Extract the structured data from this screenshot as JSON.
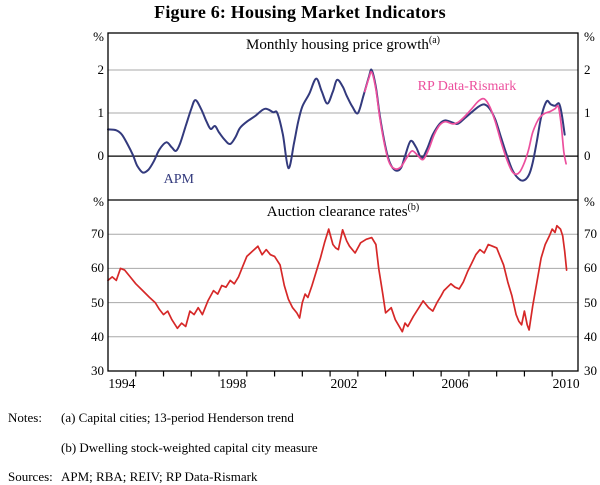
{
  "figure": {
    "title": "Figure 6: Housing Market Indicators"
  },
  "chart_data": [
    {
      "type": "line",
      "panel": "top",
      "title": "Monthly housing price growth",
      "marker": "(a)",
      "unit": "%",
      "ylim": [
        -1.02,
        2.86
      ],
      "yticks": [
        0,
        1,
        2
      ],
      "grid_yticks": [
        1,
        2
      ],
      "zero_line": true,
      "legend_position": "in-plot labels",
      "series": [
        {
          "name": "APM",
          "color": "#333a7d",
          "smooth": true,
          "points": [
            [
              1994.0,
              0.62
            ],
            [
              1994.3,
              0.6
            ],
            [
              1994.5,
              0.5
            ],
            [
              1994.7,
              0.28
            ],
            [
              1994.9,
              0.02
            ],
            [
              1995.05,
              -0.22
            ],
            [
              1995.25,
              -0.38
            ],
            [
              1995.45,
              -0.32
            ],
            [
              1995.65,
              -0.12
            ],
            [
              1995.85,
              0.15
            ],
            [
              1996.1,
              0.32
            ],
            [
              1996.3,
              0.2
            ],
            [
              1996.45,
              0.12
            ],
            [
              1996.6,
              0.3
            ],
            [
              1996.8,
              0.7
            ],
            [
              1997.0,
              1.1
            ],
            [
              1997.15,
              1.3
            ],
            [
              1997.35,
              1.1
            ],
            [
              1997.55,
              0.8
            ],
            [
              1997.7,
              0.63
            ],
            [
              1997.85,
              0.7
            ],
            [
              1998.0,
              0.55
            ],
            [
              1998.2,
              0.38
            ],
            [
              1998.4,
              0.28
            ],
            [
              1998.6,
              0.45
            ],
            [
              1998.75,
              0.65
            ],
            [
              1999.0,
              0.8
            ],
            [
              1999.3,
              0.93
            ],
            [
              1999.65,
              1.1
            ],
            [
              1999.95,
              1.02
            ],
            [
              2000.1,
              1.0
            ],
            [
              2000.3,
              0.5
            ],
            [
              2000.5,
              -0.28
            ],
            [
              2000.7,
              0.3
            ],
            [
              2000.85,
              0.8
            ],
            [
              2001.0,
              1.15
            ],
            [
              2001.25,
              1.45
            ],
            [
              2001.5,
              1.8
            ],
            [
              2001.7,
              1.5
            ],
            [
              2001.9,
              1.22
            ],
            [
              2002.1,
              1.5
            ],
            [
              2002.25,
              1.77
            ],
            [
              2002.45,
              1.62
            ],
            [
              2002.6,
              1.4
            ],
            [
              2002.8,
              1.15
            ],
            [
              2003.0,
              1.0
            ],
            [
              2003.2,
              1.4
            ],
            [
              2003.4,
              1.85
            ],
            [
              2003.5,
              2.0
            ],
            [
              2003.65,
              1.6
            ],
            [
              2003.8,
              0.9
            ],
            [
              2004.0,
              0.2
            ],
            [
              2004.15,
              -0.15
            ],
            [
              2004.35,
              -0.33
            ],
            [
              2004.55,
              -0.28
            ],
            [
              2004.7,
              0.0
            ],
            [
              2004.9,
              0.35
            ],
            [
              2005.1,
              0.2
            ],
            [
              2005.3,
              -0.05
            ],
            [
              2005.5,
              0.18
            ],
            [
              2005.7,
              0.5
            ],
            [
              2005.95,
              0.75
            ],
            [
              2006.15,
              0.83
            ],
            [
              2006.4,
              0.78
            ],
            [
              2006.6,
              0.75
            ],
            [
              2006.85,
              0.88
            ],
            [
              2007.1,
              1.02
            ],
            [
              2007.35,
              1.15
            ],
            [
              2007.55,
              1.2
            ],
            [
              2007.75,
              1.1
            ],
            [
              2007.95,
              0.85
            ],
            [
              2008.15,
              0.45
            ],
            [
              2008.35,
              0.05
            ],
            [
              2008.55,
              -0.3
            ],
            [
              2008.75,
              -0.5
            ],
            [
              2008.95,
              -0.57
            ],
            [
              2009.15,
              -0.45
            ],
            [
              2009.3,
              -0.15
            ],
            [
              2009.45,
              0.35
            ],
            [
              2009.6,
              0.9
            ],
            [
              2009.8,
              1.27
            ],
            [
              2009.95,
              1.2
            ],
            [
              2010.1,
              1.17
            ],
            [
              2010.25,
              1.22
            ],
            [
              2010.35,
              0.95
            ],
            [
              2010.45,
              0.5
            ]
          ]
        },
        {
          "name": "RP Data-Rismark",
          "color": "#ec4f9d",
          "smooth": true,
          "points": [
            [
              2003.25,
              1.5
            ],
            [
              2003.4,
              1.82
            ],
            [
              2003.5,
              1.95
            ],
            [
              2003.65,
              1.55
            ],
            [
              2003.8,
              0.85
            ],
            [
              2004.0,
              0.15
            ],
            [
              2004.15,
              -0.18
            ],
            [
              2004.35,
              -0.3
            ],
            [
              2004.55,
              -0.25
            ],
            [
              2004.75,
              -0.05
            ],
            [
              2004.95,
              0.12
            ],
            [
              2005.15,
              0.02
            ],
            [
              2005.35,
              -0.08
            ],
            [
              2005.55,
              0.15
            ],
            [
              2005.75,
              0.5
            ],
            [
              2005.95,
              0.72
            ],
            [
              2006.15,
              0.8
            ],
            [
              2006.4,
              0.75
            ],
            [
              2006.6,
              0.78
            ],
            [
              2006.85,
              0.92
            ],
            [
              2007.1,
              1.1
            ],
            [
              2007.35,
              1.28
            ],
            [
              2007.55,
              1.33
            ],
            [
              2007.75,
              1.15
            ],
            [
              2007.95,
              0.8
            ],
            [
              2008.15,
              0.35
            ],
            [
              2008.35,
              -0.05
            ],
            [
              2008.55,
              -0.35
            ],
            [
              2008.7,
              -0.42
            ],
            [
              2008.85,
              -0.35
            ],
            [
              2009.0,
              -0.15
            ],
            [
              2009.15,
              0.15
            ],
            [
              2009.3,
              0.55
            ],
            [
              2009.5,
              0.85
            ],
            [
              2009.7,
              0.98
            ],
            [
              2009.9,
              1.03
            ],
            [
              2010.1,
              1.1
            ],
            [
              2010.22,
              1.15
            ],
            [
              2010.32,
              0.75
            ],
            [
              2010.42,
              0.1
            ],
            [
              2010.5,
              -0.18
            ]
          ]
        }
      ],
      "labels": [
        {
          "text": "APM",
          "x": 1996.55,
          "y": -0.55,
          "color": "#333a7d"
        },
        {
          "text": "RP Data-Rismark",
          "x": 2006.93,
          "y": 1.6,
          "color": "#ec4f9d"
        }
      ]
    },
    {
      "type": "line",
      "panel": "bottom",
      "title": "Auction clearance rates",
      "marker": "(b)",
      "unit": "%",
      "ylim": [
        30,
        80
      ],
      "yticks": [
        30,
        40,
        50,
        60,
        70
      ],
      "grid_yticks": [
        40,
        50,
        60,
        70
      ],
      "zero_line": false,
      "series": [
        {
          "name": "Auction clearance rates",
          "color": "#d62828",
          "smooth": false,
          "points": [
            [
              1994.0,
              56.5
            ],
            [
              1994.15,
              57.5
            ],
            [
              1994.3,
              56.5
            ],
            [
              1994.45,
              60
            ],
            [
              1994.6,
              59.5
            ],
            [
              1994.8,
              57.5
            ],
            [
              1995.0,
              55.5
            ],
            [
              1995.25,
              53.5
            ],
            [
              1995.5,
              51.5
            ],
            [
              1995.7,
              50
            ],
            [
              1995.85,
              48
            ],
            [
              1996.0,
              46.5
            ],
            [
              1996.15,
              47.5
            ],
            [
              1996.3,
              45
            ],
            [
              1996.5,
              42.5
            ],
            [
              1996.65,
              44
            ],
            [
              1996.8,
              43
            ],
            [
              1996.95,
              47.5
            ],
            [
              1997.1,
              46.5
            ],
            [
              1997.25,
              48.5
            ],
            [
              1997.4,
              46.5
            ],
            [
              1997.6,
              50.5
            ],
            [
              1997.8,
              53.5
            ],
            [
              1997.95,
              52.5
            ],
            [
              1998.1,
              55
            ],
            [
              1998.25,
              54.5
            ],
            [
              1998.4,
              56.5
            ],
            [
              1998.55,
              55.5
            ],
            [
              1998.7,
              57.5
            ],
            [
              1998.85,
              60.5
            ],
            [
              1999.0,
              63.5
            ],
            [
              1999.2,
              65
            ],
            [
              1999.4,
              66.5
            ],
            [
              1999.55,
              64
            ],
            [
              1999.7,
              65.5
            ],
            [
              1999.85,
              64
            ],
            [
              2000.0,
              63.5
            ],
            [
              2000.2,
              61
            ],
            [
              2000.35,
              55
            ],
            [
              2000.5,
              51
            ],
            [
              2000.65,
              48.5
            ],
            [
              2000.8,
              47
            ],
            [
              2000.9,
              45.5
            ],
            [
              2001.0,
              50
            ],
            [
              2001.1,
              52.5
            ],
            [
              2001.2,
              51.5
            ],
            [
              2001.35,
              55
            ],
            [
              2001.5,
              59
            ],
            [
              2001.65,
              63
            ],
            [
              2001.8,
              67.5
            ],
            [
              2001.95,
              71.5
            ],
            [
              2002.1,
              67
            ],
            [
              2002.2,
              66
            ],
            [
              2002.3,
              65.5
            ],
            [
              2002.45,
              71.3
            ],
            [
              2002.6,
              68
            ],
            [
              2002.7,
              66.5
            ],
            [
              2002.9,
              64.5
            ],
            [
              2003.1,
              67.5
            ],
            [
              2003.3,
              68.5
            ],
            [
              2003.5,
              69
            ],
            [
              2003.65,
              67
            ],
            [
              2003.75,
              60
            ],
            [
              2003.9,
              52.5
            ],
            [
              2004.0,
              47
            ],
            [
              2004.2,
              48.5
            ],
            [
              2004.35,
              45
            ],
            [
              2004.6,
              41.5
            ],
            [
              2004.7,
              44
            ],
            [
              2004.8,
              43
            ],
            [
              2005.0,
              46
            ],
            [
              2005.2,
              48.5
            ],
            [
              2005.35,
              50.5
            ],
            [
              2005.55,
              48.5
            ],
            [
              2005.7,
              47.5
            ],
            [
              2005.85,
              50
            ],
            [
              2006.0,
              52
            ],
            [
              2006.1,
              53.5
            ],
            [
              2006.35,
              55.5
            ],
            [
              2006.5,
              54.5
            ],
            [
              2006.65,
              54
            ],
            [
              2006.8,
              56
            ],
            [
              2006.95,
              59
            ],
            [
              2007.1,
              61.5
            ],
            [
              2007.25,
              64
            ],
            [
              2007.4,
              65.5
            ],
            [
              2007.55,
              64.5
            ],
            [
              2007.7,
              67
            ],
            [
              2007.85,
              66.5
            ],
            [
              2008.0,
              66
            ],
            [
              2008.1,
              64
            ],
            [
              2008.25,
              61
            ],
            [
              2008.4,
              56
            ],
            [
              2008.55,
              52
            ],
            [
              2008.7,
              46.5
            ],
            [
              2008.8,
              44.5
            ],
            [
              2008.9,
              43.5
            ],
            [
              2009.0,
              47.5
            ],
            [
              2009.1,
              43.5
            ],
            [
              2009.17,
              42
            ],
            [
              2009.3,
              49
            ],
            [
              2009.45,
              56
            ],
            [
              2009.6,
              63
            ],
            [
              2009.75,
              67
            ],
            [
              2009.9,
              69.5
            ],
            [
              2010.0,
              71.5
            ],
            [
              2010.1,
              70.5
            ],
            [
              2010.17,
              72.5
            ],
            [
              2010.3,
              71.5
            ],
            [
              2010.38,
              69.5
            ],
            [
              2010.45,
              65
            ],
            [
              2010.52,
              59.5
            ]
          ]
        }
      ],
      "labels": []
    }
  ],
  "x_axis": {
    "xlim": [
      1994,
      2010.93
    ],
    "minor_ticks": [
      1995,
      1996,
      1997,
      1998,
      1999,
      2000,
      2001,
      2002,
      2003,
      2004,
      2005,
      2006,
      2007,
      2008,
      2009,
      2010
    ],
    "labels": [
      {
        "text": "1994",
        "x": 1994.5
      },
      {
        "text": "1998",
        "x": 1998.5
      },
      {
        "text": "2002",
        "x": 2002.5
      },
      {
        "text": "2006",
        "x": 2006.5
      },
      {
        "text": "2010",
        "x": 2010.5
      }
    ]
  },
  "colors": {
    "frame": "#000000",
    "grid": "#a8a8a8",
    "zero_line": "#000000"
  },
  "notes": {
    "label": "Notes:",
    "items": [
      "(a) Capital cities; 13-period Henderson trend",
      "(b) Dwelling stock-weighted capital city measure"
    ]
  },
  "sources": {
    "label": "Sources:",
    "text": "APM; RBA; REIV; RP Data-Rismark"
  }
}
